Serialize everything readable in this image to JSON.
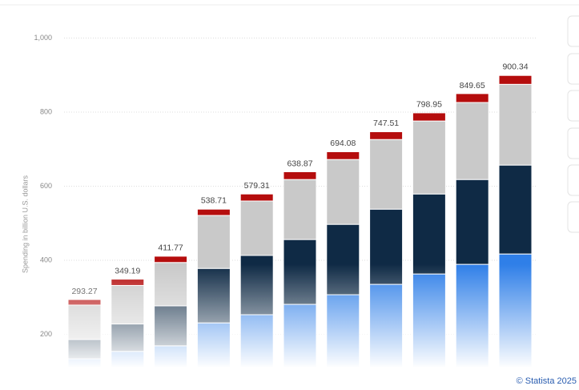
{
  "chart_data": {
    "type": "stacked-bar",
    "y_axis_label": "Spending in billion U.S. dollars",
    "credit": "© Statista 2025",
    "ylim": [
      0,
      1000
    ],
    "yticks": [
      200,
      400,
      600,
      800,
      {
        "value": 1000,
        "label": "1,000"
      }
    ],
    "grid": true,
    "series": [
      {
        "color": "#2f7fe8",
        "values": [
          134,
          154,
          169,
          231,
          253,
          281,
          307,
          335,
          363,
          389,
          417
        ]
      },
      {
        "color": "#0f2a45",
        "values": [
          52,
          74,
          108,
          147,
          160,
          175,
          190,
          203,
          216,
          229,
          240
        ]
      },
      {
        "color": "#c9c9c9",
        "values": [
          93,
          104,
          117,
          143,
          147,
          162,
          175,
          188,
          197,
          208,
          218
        ]
      },
      {
        "color": "#b50d0d",
        "values": [
          15,
          17,
          17,
          17,
          19,
          21,
          21,
          21,
          22,
          24,
          24
        ]
      }
    ],
    "totals": [
      293.27,
      349.19,
      411.77,
      538.71,
      579.31,
      638.87,
      694.08,
      747.51,
      798.95,
      849.65,
      900.34
    ]
  }
}
